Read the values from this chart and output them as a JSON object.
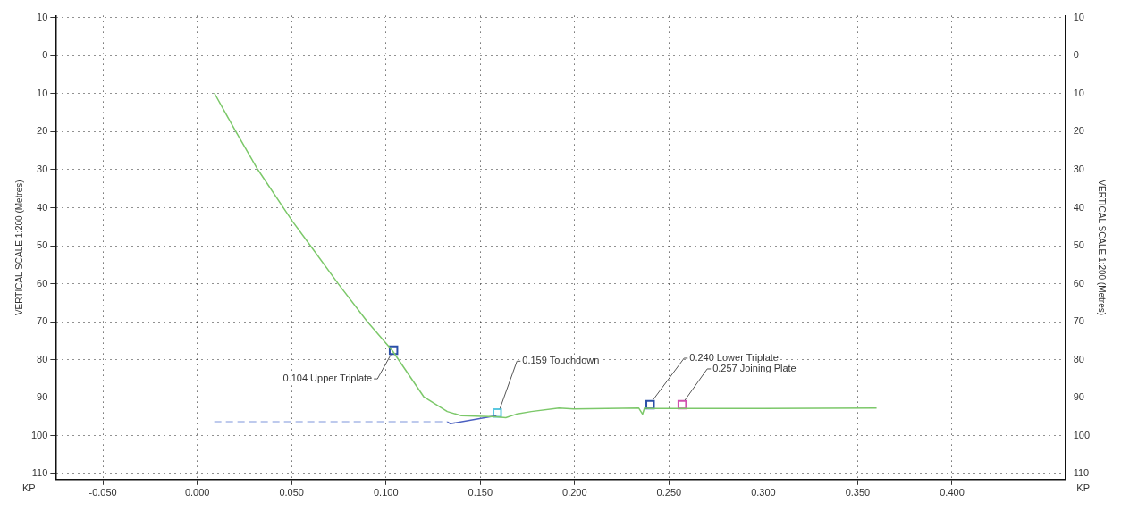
{
  "chart_data": {
    "type": "line",
    "xlabel": "KP",
    "ylabel": "VERTICAL SCALE 1:200 (Metres)",
    "y2label": "VERTICAL SCALE 1:200 (Metres)",
    "xlim": [
      -0.075,
      0.46
    ],
    "xticks": [
      {
        "value": -0.05,
        "label": "-0.050"
      },
      {
        "value": 0,
        "label": "0.000"
      },
      {
        "value": 0.05,
        "label": "0.050"
      },
      {
        "value": 0.1,
        "label": "0.100"
      },
      {
        "value": 0.15,
        "label": "0.150"
      },
      {
        "value": 0.2,
        "label": "0.200"
      },
      {
        "value": 0.25,
        "label": "0.250"
      },
      {
        "value": 0.3,
        "label": "0.300"
      },
      {
        "value": 0.35,
        "label": "0.350"
      },
      {
        "value": 0.4,
        "label": "0.400"
      }
    ],
    "ylim": [
      111.5,
      -10.5
    ],
    "yticks": [
      {
        "value": -10,
        "label": "10"
      },
      0,
      10,
      20,
      30,
      40,
      50,
      60,
      70,
      80,
      90,
      100,
      110
    ],
    "y2lim": [
      111.5,
      -10.5
    ],
    "y2ticks": [
      {
        "value": -10,
        "label": "10"
      },
      0,
      10,
      20,
      30,
      40,
      50,
      60,
      70,
      80,
      90,
      100,
      110
    ],
    "grid": true,
    "legend": false,
    "series": [
      {
        "color": "#7cc86a",
        "line_style": "solid",
        "marker": "none",
        "x": [
          0.009,
          0.02,
          0.032,
          0.0505,
          0.0597,
          0.0747,
          0.09,
          0.1034,
          0.12,
          0.1325,
          0.14,
          0.1585,
          0.1635,
          0.169,
          0.177,
          0.1917,
          0.1995,
          0.234,
          0.236,
          0.237,
          0.2395,
          0.256,
          0.3,
          0.36
        ],
        "values": [
          9.8,
          19.6,
          29.9,
          43.6,
          49.8,
          60,
          69.9,
          77.6,
          89.7,
          93.6,
          94.7,
          95,
          95.2,
          94.3,
          93.6,
          92.7,
          92.9,
          92.7,
          94.3,
          92.7,
          92.8,
          92.8,
          92.8,
          92.7
        ]
      },
      {
        "color": "#a9b9e8",
        "line_style": "dashed",
        "marker": "none",
        "x": [
          0.009,
          0.1325
        ],
        "values": [
          96.3,
          96.3
        ]
      },
      {
        "color": "#4a5fc0",
        "line_style": "solid",
        "marker": "none",
        "x": [
          0.1325,
          0.134,
          0.1585
        ],
        "values": [
          96.3,
          96.8,
          94.7
        ]
      },
      {
        "type": "scatter",
        "marker": "square",
        "x": [
          0.104,
          0.159,
          0.24,
          0.257
        ],
        "values": [
          77.5,
          94,
          91.8,
          91.8
        ],
        "colors": [
          "#2a4fa8",
          "#5bc8e0",
          "#2a4fa8",
          "#d050b0"
        ]
      }
    ],
    "annotations": [
      {
        "text": "0.104 Upper Triplate",
        "x": 0.104,
        "y": 77.5
      },
      {
        "text": "0.159 Touchdown",
        "x": 0.159,
        "y": 94
      },
      {
        "text": "0.240 Lower Triplate",
        "x": 0.24,
        "y": 91.8
      },
      {
        "text": "0.257 Joining Plate",
        "x": 0.257,
        "y": 91.8
      }
    ]
  }
}
